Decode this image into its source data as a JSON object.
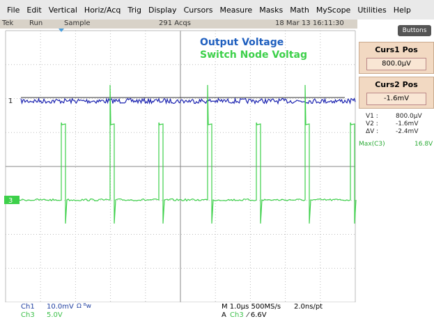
{
  "menu": [
    "File",
    "Edit",
    "Vertical",
    "Horiz/Acq",
    "Trig",
    "Display",
    "Cursors",
    "Measure",
    "Masks",
    "Math",
    "MyScope",
    "Utilities",
    "Help"
  ],
  "status": {
    "brand": "Tek",
    "state": "Run",
    "mode": "Sample",
    "acqs": "291 Acqs",
    "datetime": "18 Mar 13 16:11:30"
  },
  "annotations": {
    "output": "Output Voltage",
    "switch": "Switch Node Voltag"
  },
  "markers": {
    "ch1": "1",
    "ch3": "3"
  },
  "panel": {
    "buttons": "Buttons",
    "curs1_label": "Curs1 Pos",
    "curs1_value": "800.0µV",
    "curs2_label": "Curs2 Pos",
    "curs2_value": "-1.6mV"
  },
  "readouts": [
    {
      "label": "V1 :",
      "value": "800.0µV"
    },
    {
      "label": "V2 :",
      "value": "-1.6mV"
    },
    {
      "label": "ΔV :",
      "value": "-2.4mV"
    }
  ],
  "measurement": {
    "label": "Max(C3)",
    "value": "16.8V"
  },
  "footer": {
    "ch1": "Ch1",
    "ch1_scale": "10.0mV",
    "ch1_bw": "Ω ᴮw",
    "ch3": "Ch3",
    "ch3_scale": "5.0V",
    "timebase": "M 1.0µs 500MS/s",
    "resolution": "2.0ns/pt",
    "trigger_prefix": "A",
    "trigger_src": "Ch3",
    "trigger_level": "⁄ 6.6V"
  }
}
